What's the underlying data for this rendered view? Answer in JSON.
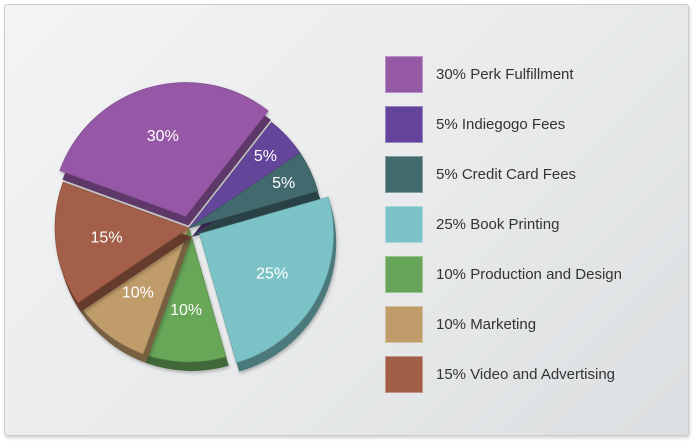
{
  "chart_data": {
    "type": "pie",
    "title": "",
    "slices": [
      {
        "label": "Perk Fulfillment",
        "value": 30,
        "value_label": "30%",
        "legend": "30% Perk Fulfillment",
        "color": "#9659a6"
      },
      {
        "label": "Indiegogo Fees",
        "value": 5,
        "value_label": "5%",
        "legend": "5% Indiegogo Fees",
        "color": "#63449a"
      },
      {
        "label": "Credit Card Fees",
        "value": 5,
        "value_label": "5%",
        "legend": "5% Credit Card Fees",
        "color": "#436b6e"
      },
      {
        "label": "Book Printing",
        "value": 25,
        "value_label": "25%",
        "legend": "25% Book Printing",
        "color": "#7bc3c8"
      },
      {
        "label": "Production and Design",
        "value": 10,
        "value_label": "10%",
        "legend": "10% Production and Design",
        "color": "#67a658"
      },
      {
        "label": "Marketing",
        "value": 10,
        "value_label": "10%",
        "legend": "10% Marketing",
        "color": "#c09c6a"
      },
      {
        "label": "Video and Advertising",
        "value": 15,
        "value_label": "15%",
        "legend": "15% Video and Advertising",
        "color": "#a35e48"
      }
    ],
    "exploded": [
      "Perk Fulfillment",
      "Book Printing"
    ],
    "style": "3d",
    "legend_position": "right"
  }
}
